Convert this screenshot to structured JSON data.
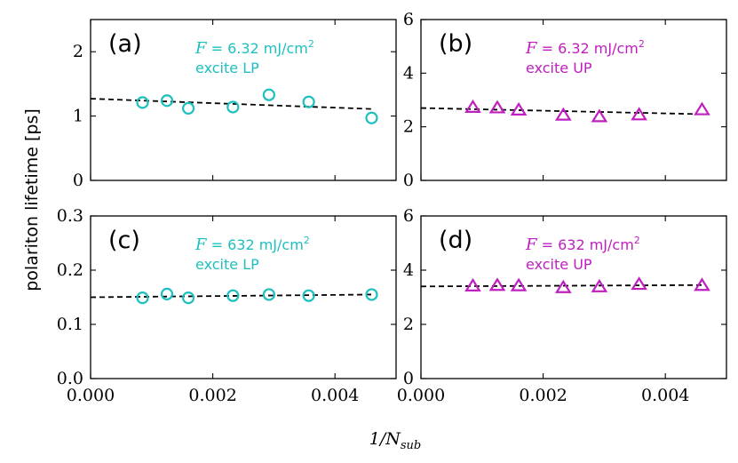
{
  "colors": {
    "lp": "#1fbfbf",
    "up": "#bf1fbf"
  },
  "figure": {
    "ylabel": "polariton lifetime [ps]",
    "xlabel_main": "1/N",
    "xlabel_sub": "sub"
  },
  "chart_data": [
    {
      "type": "scatter",
      "panel": "(a)",
      "marker": "circle",
      "color_key": "lp",
      "annotation_f": "F",
      "annotation_value": " = 6.32 mJ/cm",
      "annotation_sup": "2",
      "annotation_line2": "excite LP",
      "xlim": [
        0,
        0.005
      ],
      "ylim": [
        0,
        2.5
      ],
      "xticks": [
        0,
        0.002,
        0.004
      ],
      "xtick_labels": [
        "0.000",
        "0.002",
        "0.004"
      ],
      "yticks": [
        0,
        1,
        2
      ],
      "ytick_labels": [
        "0",
        "1",
        "2"
      ],
      "x": [
        0.00085,
        0.00125,
        0.0016,
        0.00233,
        0.00292,
        0.00357,
        0.0046
      ],
      "y": [
        1.21,
        1.24,
        1.12,
        1.14,
        1.33,
        1.22,
        0.97
      ],
      "fit": {
        "x": [
          0,
          0.0046
        ],
        "y": [
          1.27,
          1.11
        ]
      }
    },
    {
      "type": "scatter",
      "panel": "(b)",
      "marker": "triangle",
      "color_key": "up",
      "annotation_f": "F",
      "annotation_value": " = 6.32 mJ/cm",
      "annotation_sup": "2",
      "annotation_line2": "excite UP",
      "xlim": [
        0,
        0.005
      ],
      "ylim": [
        0,
        6
      ],
      "xticks": [
        0,
        0.002,
        0.004
      ],
      "xtick_labels": [
        "0.000",
        "0.002",
        "0.004"
      ],
      "yticks": [
        0,
        2,
        4,
        6
      ],
      "ytick_labels": [
        "0",
        "2",
        "4",
        "6"
      ],
      "x": [
        0.00085,
        0.00125,
        0.0016,
        0.00233,
        0.00292,
        0.00357,
        0.0046
      ],
      "y": [
        2.72,
        2.7,
        2.62,
        2.43,
        2.37,
        2.44,
        2.63
      ],
      "fit": {
        "x": [
          0,
          0.0046
        ],
        "y": [
          2.7,
          2.47
        ]
      }
    },
    {
      "type": "scatter",
      "panel": "(c)",
      "marker": "circle",
      "color_key": "lp",
      "annotation_f": "F",
      "annotation_value": " = 632 mJ/cm",
      "annotation_sup": "2",
      "annotation_line2": "excite LP",
      "xlim": [
        0,
        0.005
      ],
      "ylim": [
        0,
        0.3
      ],
      "xticks": [
        0,
        0.002,
        0.004
      ],
      "xtick_labels": [
        "0.000",
        "0.002",
        "0.004"
      ],
      "yticks": [
        0,
        0.1,
        0.2,
        0.3
      ],
      "ytick_labels": [
        "0.0",
        "0.1",
        "0.2",
        "0.3"
      ],
      "x": [
        0.00085,
        0.00125,
        0.0016,
        0.00233,
        0.00292,
        0.00357,
        0.0046
      ],
      "y": [
        0.149,
        0.156,
        0.149,
        0.153,
        0.155,
        0.153,
        0.155
      ],
      "fit": {
        "x": [
          0,
          0.0046
        ],
        "y": [
          0.15,
          0.155
        ]
      }
    },
    {
      "type": "scatter",
      "panel": "(d)",
      "marker": "triangle",
      "color_key": "up",
      "annotation_f": "F",
      "annotation_value": " = 632 mJ/cm",
      "annotation_sup": "2",
      "annotation_line2": "excite UP",
      "xlim": [
        0,
        0.005
      ],
      "ylim": [
        0,
        6
      ],
      "xticks": [
        0,
        0.002,
        0.004
      ],
      "xtick_labels": [
        "0.000",
        "0.002",
        "0.004"
      ],
      "yticks": [
        0,
        2,
        4,
        6
      ],
      "ytick_labels": [
        "0",
        "2",
        "4",
        "6"
      ],
      "x": [
        0.00085,
        0.00125,
        0.0016,
        0.00233,
        0.00292,
        0.00357,
        0.0046
      ],
      "y": [
        3.41,
        3.43,
        3.42,
        3.35,
        3.38,
        3.47,
        3.43
      ],
      "fit": {
        "x": [
          0,
          0.0046
        ],
        "y": [
          3.4,
          3.45
        ]
      }
    }
  ]
}
